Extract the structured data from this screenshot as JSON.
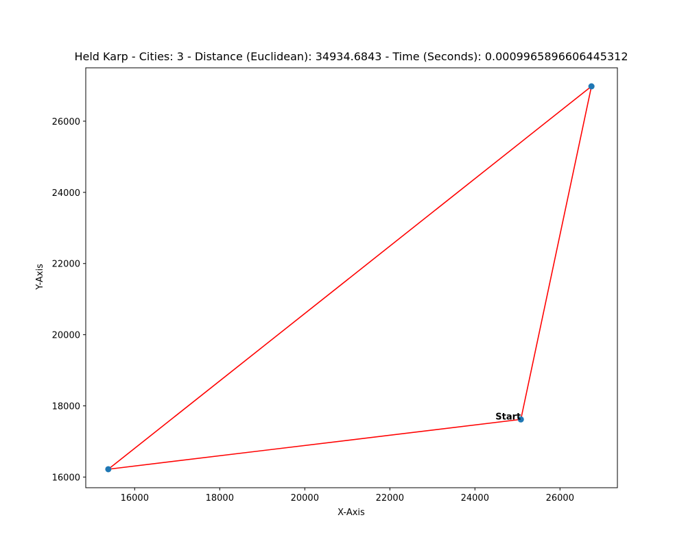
{
  "chart_data": {
    "type": "line",
    "title": "Held Karp - Cities: 3 - Distance (Euclidean): 34934.6843 - Time (Seconds): 0.0009965896606445312",
    "xlabel": "X-Axis",
    "ylabel": "Y-Axis",
    "xlim": [
      14850,
      27350
    ],
    "ylim": [
      15700,
      27500
    ],
    "xticks": [
      16000,
      18000,
      20000,
      22000,
      24000,
      26000
    ],
    "yticks": [
      16000,
      18000,
      20000,
      22000,
      24000,
      26000
    ],
    "grid": false,
    "points": [
      {
        "x": 25080,
        "y": 17620
      },
      {
        "x": 26740,
        "y": 26980
      },
      {
        "x": 15380,
        "y": 16220
      }
    ],
    "route": [
      {
        "x": 25080,
        "y": 17620
      },
      {
        "x": 26740,
        "y": 26980
      },
      {
        "x": 15380,
        "y": 16220
      },
      {
        "x": 25080,
        "y": 17620
      }
    ],
    "annotations": [
      {
        "text": "Start",
        "x": 25080,
        "y": 17620
      }
    ],
    "colors": {
      "route": "#ff0000",
      "point": "#1f77b4",
      "axes": "#000000"
    }
  }
}
